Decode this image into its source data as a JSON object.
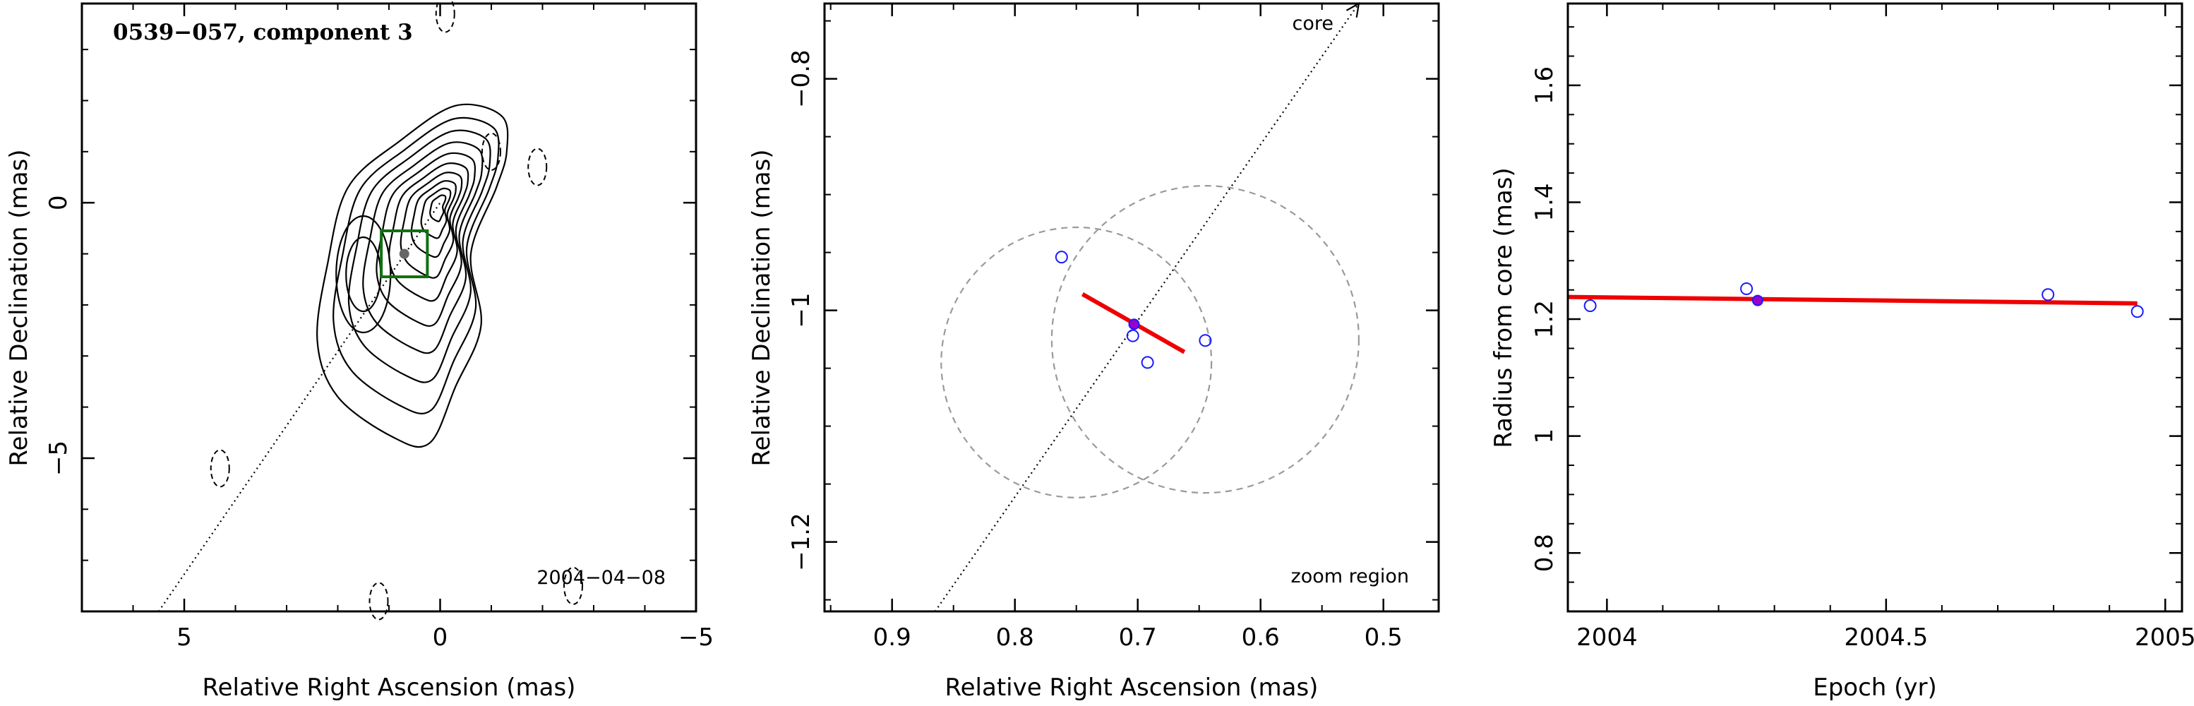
{
  "chart_data": [
    {
      "type": "contour",
      "title": "0539−057, component 3",
      "date_label": "2004−04−08",
      "xlabel": "Relative Right Ascension (mas)",
      "ylabel": "Relative Declination (mas)",
      "xlim": [
        7,
        -5
      ],
      "ylim": [
        -8,
        3.9
      ],
      "xticks": [
        5,
        0,
        -5
      ],
      "yticks": [
        0,
        -5
      ],
      "xtick_labels": [
        "5",
        "0",
        "−5"
      ],
      "ytick_labels": [
        "0",
        "−5"
      ],
      "component_position": {
        "x": 0.7,
        "y": -1.0
      },
      "jet_direction": {
        "x1": 5.5,
        "y1": -8.0,
        "x2": 0.0,
        "y2": 0.0
      },
      "box_half_size": 0.45,
      "contours": {
        "center_core": {
          "x": 0.0,
          "y": 0.0
        },
        "positive_levels": 10,
        "negative_level_patches": [
          {
            "x": -0.1,
            "y": 3.7
          },
          {
            "x": -1.0,
            "y": 1.0
          },
          {
            "x": -1.9,
            "y": 0.7
          },
          {
            "x": 4.3,
            "y": -5.2
          },
          {
            "x": 1.2,
            "y": -7.8
          },
          {
            "x": -2.6,
            "y": -7.5
          }
        ]
      },
      "colors": {
        "contour": "#000000",
        "box": "#107010",
        "marker": "#666666"
      }
    },
    {
      "type": "scatter",
      "xlabel": "Relative Right Ascension (mas)",
      "ylabel": "Relative Declination (mas)",
      "xlim": [
        0.955,
        0.455
      ],
      "ylim": [
        -1.26,
        -0.735
      ],
      "xticks": [
        0.9,
        0.8,
        0.7,
        0.6,
        0.5
      ],
      "yticks": [
        -0.8,
        -1.0,
        -1.2
      ],
      "xtick_labels": [
        "0.9",
        "0.8",
        "0.7",
        "0.6",
        "0.5"
      ],
      "ytick_labels": [
        "−0.8",
        "−1",
        "−1.2"
      ],
      "labels": {
        "core": "core",
        "zoom": "zoom region"
      },
      "points": [
        {
          "x": 0.762,
          "y": -0.954
        },
        {
          "x": 0.704,
          "y": -1.022
        },
        {
          "x": 0.692,
          "y": -1.045
        },
        {
          "x": 0.645,
          "y": -1.026
        }
      ],
      "mean_position": {
        "x": 0.703,
        "y": -1.012
      },
      "motion_vector": {
        "x1": 0.745,
        "y1": -0.986,
        "x2": 0.662,
        "y2": -1.036
      },
      "error_circles": [
        {
          "x": 0.75,
          "y": -1.045,
          "r": 0.11
        },
        {
          "x": 0.645,
          "y": -1.025,
          "r": 0.125
        }
      ],
      "jet_direction": {
        "x1": 0.865,
        "y1": -1.26,
        "x2": 0.52,
        "y2": -0.735
      },
      "colors": {
        "points": "#1a1aff",
        "mean": "#9900cc",
        "fit": "#ee0000",
        "circles": "#9a9a9a"
      }
    },
    {
      "type": "scatter",
      "xlabel": "Epoch (yr)",
      "ylabel": "Radius from core (mas)",
      "xlim": [
        3.93,
        5.03
      ],
      "xlim_offset_label": "epoch = 2000 + x",
      "ylim": [
        0.7,
        1.74
      ],
      "xticks": [
        4.0,
        4.5,
        5.0
      ],
      "yticks": [
        0.8,
        1.0,
        1.2,
        1.4,
        1.6
      ],
      "xtick_labels": [
        "2004",
        "2004.5",
        "2005"
      ],
      "ytick_labels": [
        "0.8",
        "1",
        "1.2",
        "1.4",
        "1.6"
      ],
      "points": [
        {
          "x": 3.97,
          "y": 1.223
        },
        {
          "x": 4.25,
          "y": 1.252
        },
        {
          "x": 4.79,
          "y": 1.242
        },
        {
          "x": 4.95,
          "y": 1.213
        }
      ],
      "mean_position": {
        "x": 4.27,
        "y": 1.232
      },
      "fit_line": {
        "x1": 3.93,
        "y1": 1.238,
        "x2": 4.95,
        "y2": 1.227
      },
      "colors": {
        "points": "#1a1aff",
        "mean": "#9900cc",
        "fit": "#ee0000"
      }
    }
  ]
}
